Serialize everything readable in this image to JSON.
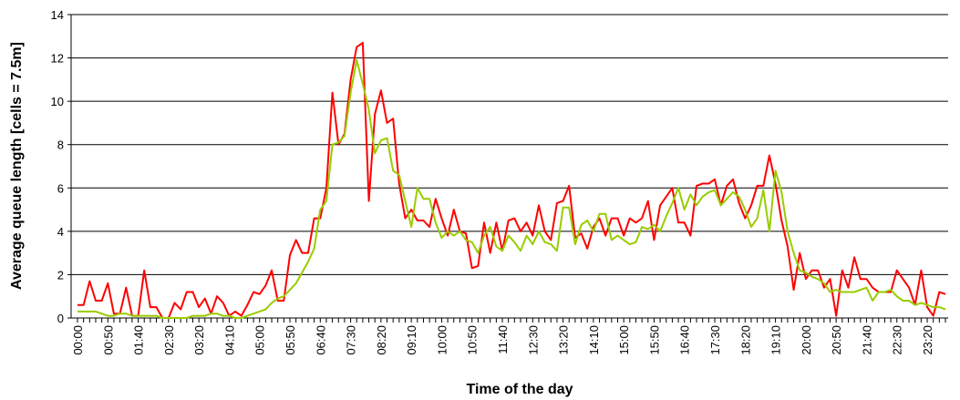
{
  "chart_data": {
    "type": "line",
    "x_label": "Time of the day",
    "y_label": "Average queue length   [cells = 7.5m]",
    "categories": [
      "00:00",
      null,
      null,
      null,
      null,
      "00:50",
      null,
      null,
      null,
      null,
      "01:40",
      null,
      null,
      null,
      null,
      "02:30",
      null,
      null,
      null,
      null,
      "03:20",
      null,
      null,
      null,
      null,
      "04:10",
      null,
      null,
      null,
      null,
      "05:00",
      null,
      null,
      null,
      null,
      "05:50",
      null,
      null,
      null,
      null,
      "06:40",
      null,
      null,
      null,
      null,
      "07:30",
      null,
      null,
      null,
      null,
      "08:20",
      null,
      null,
      null,
      null,
      "09:10",
      null,
      null,
      null,
      null,
      "10:00",
      null,
      null,
      null,
      null,
      "10:50",
      null,
      null,
      null,
      null,
      "11:40",
      null,
      null,
      null,
      null,
      "12:30",
      null,
      null,
      null,
      null,
      "13:20",
      null,
      null,
      null,
      null,
      "14:10",
      null,
      null,
      null,
      null,
      "15:00",
      null,
      null,
      null,
      null,
      "15:50",
      null,
      null,
      null,
      null,
      "16:40",
      null,
      null,
      null,
      null,
      "17:30",
      null,
      null,
      null,
      null,
      "18:20",
      null,
      null,
      null,
      null,
      "19:10",
      null,
      null,
      null,
      null,
      "20:00",
      null,
      null,
      null,
      null,
      "20:50",
      null,
      null,
      null,
      null,
      "21:40",
      null,
      null,
      null,
      null,
      "22:30",
      null,
      null,
      null,
      null,
      "23:20",
      null,
      null,
      null
    ],
    "series": [
      {
        "color": "#ff0000",
        "values": [
          0.6,
          0.6,
          1.7,
          0.8,
          0.8,
          1.6,
          0.2,
          0.2,
          1.4,
          0.1,
          0.1,
          2.2,
          0.5,
          0.5,
          0.0,
          0.0,
          0.7,
          0.4,
          1.2,
          1.2,
          0.5,
          0.9,
          0.2,
          1.0,
          0.7,
          0.1,
          0.3,
          0.1,
          0.6,
          1.2,
          1.1,
          1.5,
          2.2,
          0.8,
          0.8,
          2.9,
          3.6,
          3.0,
          3.0,
          4.6,
          4.6,
          6.0,
          10.4,
          8.0,
          8.5,
          11.0,
          12.5,
          12.7,
          5.4,
          9.4,
          10.5,
          9.0,
          9.2,
          6.2,
          4.6,
          5.0,
          4.5,
          4.5,
          4.2,
          5.5,
          4.6,
          3.8,
          5.0,
          4.0,
          3.9,
          2.3,
          2.4,
          4.4,
          3.0,
          4.4,
          3.1,
          4.5,
          4.6,
          4.0,
          4.4,
          3.8,
          5.2,
          4.0,
          3.6,
          5.3,
          5.4,
          6.1,
          3.7,
          3.9,
          3.2,
          4.2,
          4.6,
          3.8,
          4.6,
          4.6,
          3.8,
          4.6,
          4.4,
          4.6,
          5.4,
          3.6,
          5.2,
          5.6,
          6.0,
          4.4,
          4.4,
          3.8,
          6.1,
          6.2,
          6.2,
          6.4,
          5.2,
          6.1,
          6.4,
          5.3,
          4.6,
          5.2,
          6.1,
          6.1,
          7.5,
          6.2,
          4.5,
          3.3,
          1.3,
          3.0,
          1.8,
          2.2,
          2.2,
          1.4,
          1.8,
          0.1,
          2.2,
          1.4,
          2.8,
          1.8,
          1.8,
          1.4,
          1.2,
          1.2,
          1.2,
          2.2,
          1.8,
          1.4,
          0.6,
          2.2,
          0.5,
          0.1,
          1.2,
          1.1
        ]
      },
      {
        "color": "#99cc00",
        "values": [
          0.3,
          0.3,
          0.3,
          0.3,
          0.2,
          0.1,
          0.1,
          0.2,
          0.2,
          0.1,
          0.1,
          0.1,
          0.1,
          0.1,
          0,
          0,
          0,
          0,
          0,
          0.1,
          0.1,
          0.1,
          0.2,
          0.2,
          0.1,
          0.1,
          0,
          0,
          0.1,
          0.2,
          0.3,
          0.4,
          0.7,
          0.9,
          1.0,
          1.3,
          1.6,
          2.1,
          2.6,
          3.2,
          5.0,
          5.4,
          8.0,
          8.1,
          8.4,
          10.4,
          11.9,
          10.8,
          9.6,
          7.6,
          8.2,
          8.3,
          6.8,
          6.6,
          5.4,
          4.2,
          6.0,
          5.5,
          5.5,
          4.4,
          3.7,
          4.0,
          3.8,
          4.0,
          3.6,
          3.5,
          3.0,
          3.8,
          4.2,
          3.3,
          3.1,
          3.8,
          3.5,
          3.1,
          3.8,
          3.4,
          4.0,
          3.5,
          3.4,
          3.1,
          5.1,
          5.1,
          3.4,
          4.3,
          4.5,
          4.0,
          4.8,
          4.8,
          3.6,
          3.8,
          3.6,
          3.4,
          3.5,
          4.2,
          4.1,
          4.3,
          4.0,
          4.7,
          5.3,
          6.0,
          5.0,
          5.7,
          5.2,
          5.6,
          5.8,
          5.9,
          5.2,
          5.5,
          5.8,
          5.6,
          5.0,
          4.2,
          4.6,
          5.9,
          4.0,
          6.8,
          5.8,
          4.0,
          3.0,
          2.2,
          2.1,
          1.9,
          1.8,
          1.6,
          1.2,
          1.3,
          1.2,
          1.2,
          1.2,
          1.3,
          1.4,
          0.8,
          1.2,
          1.2,
          1.3,
          1.0,
          0.8,
          0.8,
          0.6,
          0.7,
          0.6,
          0.5,
          0.5,
          0.4
        ]
      }
    ],
    "ylim": [
      0,
      14
    ],
    "yticks": [
      0,
      2,
      4,
      6,
      8,
      10,
      12,
      14
    ],
    "grid": true
  }
}
